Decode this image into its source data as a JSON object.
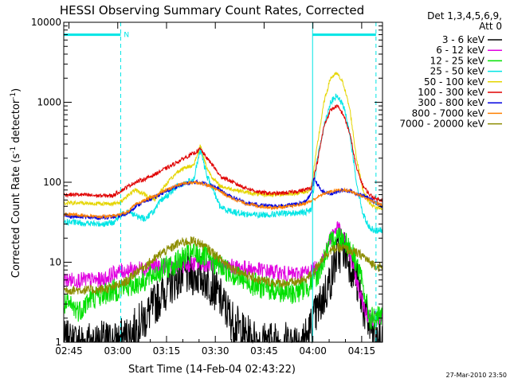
{
  "chart_data": {
    "type": "line",
    "title": "HESSI Observing Summary Count Rates, Corrected",
    "xlabel": "Start Time (14-Feb-04 02:43:22)",
    "ylabel_main": "Corrected Count Rate (s",
    "ylabel_sup1": "-1",
    "ylabel_mid": " detector",
    "ylabel_sup2": "-1",
    "ylabel_end": ")",
    "x_unit": "minutes after 02:43:22",
    "xlim": [
      0,
      98
    ],
    "ylim": [
      1,
      10000
    ],
    "log_y": true,
    "x_ticks": [
      {
        "label": "02:45",
        "x": 1.6
      },
      {
        "label": "03:00",
        "x": 16.6
      },
      {
        "label": "03:15",
        "x": 31.6
      },
      {
        "label": "03:30",
        "x": 46.6
      },
      {
        "label": "03:45",
        "x": 61.6
      },
      {
        "label": "04:00",
        "x": 76.6
      },
      {
        "label": "04:15",
        "x": 91.6
      }
    ],
    "y_ticks": [
      {
        "label": "1",
        "y": 1
      },
      {
        "label": "10",
        "y": 10
      },
      {
        "label": "100",
        "y": 100
      },
      {
        "label": "1000",
        "y": 1000
      },
      {
        "label": "10000",
        "y": 10000
      }
    ],
    "legend_header": [
      "Det 1,3,4,5,6,9,",
      "Att 0"
    ],
    "legend_position": "right",
    "attenuator_flag": {
      "label": "N",
      "segments": [
        [
          0,
          17.5
        ],
        [
          76.5,
          96
        ]
      ],
      "y": 7000,
      "color": "#00e5e5"
    },
    "event_lines": [
      {
        "x": 17.5,
        "style": "dashed"
      },
      {
        "x": 76.5,
        "style": "solid"
      },
      {
        "x": 96,
        "style": "dashed"
      }
    ],
    "series": [
      {
        "name": "3 - 6 keV",
        "color": "#000000",
        "noise": 0.55,
        "x": [
          0,
          10,
          16,
          20,
          25,
          28,
          32,
          35,
          37,
          40,
          43,
          46,
          49,
          52,
          56,
          60,
          65,
          70,
          75,
          77,
          79,
          82,
          84,
          86,
          88,
          90,
          93,
          96,
          98
        ],
        "y": [
          1,
          1,
          1,
          1.2,
          2,
          3,
          5,
          6.5,
          7,
          7,
          6.5,
          5,
          3,
          1.8,
          1.2,
          1,
          1,
          1,
          1.2,
          2,
          3,
          6,
          12,
          15,
          10,
          6,
          2,
          1,
          1
        ]
      },
      {
        "name": "6 - 12 keV",
        "color": "#e000e0",
        "noise": 0.2,
        "x": [
          0,
          12,
          16,
          20,
          25,
          30,
          35,
          40,
          45,
          50,
          55,
          60,
          65,
          70,
          75,
          78,
          80,
          82,
          84,
          86,
          88,
          90,
          92,
          94,
          96,
          98
        ],
        "y": [
          6,
          6,
          7.5,
          8,
          8.5,
          9,
          9,
          9.5,
          9.5,
          9,
          8.5,
          8,
          7.5,
          7,
          7.5,
          8.5,
          12,
          20,
          28,
          20,
          12,
          6,
          3,
          2,
          2,
          2
        ]
      },
      {
        "name": "12 - 25 keV",
        "color": "#00e000",
        "noise": 0.3,
        "x": [
          0,
          5,
          8,
          12,
          16,
          20,
          25,
          30,
          35,
          38,
          40,
          43,
          46,
          50,
          55,
          60,
          65,
          70,
          75,
          78,
          80,
          82,
          84,
          86,
          88,
          90,
          92,
          94,
          96,
          98
        ],
        "y": [
          3,
          2.5,
          3.5,
          4,
          4.5,
          5,
          6,
          8,
          10,
          12,
          13,
          12,
          10,
          8,
          6,
          5,
          4.5,
          4,
          5,
          7,
          11,
          17,
          22,
          20,
          15,
          10,
          5,
          2,
          2,
          2
        ]
      },
      {
        "name": "25 - 50 keV",
        "color": "#00e5e5",
        "noise": 0.08,
        "x": [
          0,
          5,
          10,
          15,
          18,
          20,
          22,
          25,
          28,
          30,
          33,
          35,
          38,
          40,
          42,
          44,
          46,
          48,
          50,
          53,
          56,
          60,
          65,
          70,
          74,
          76,
          78,
          80,
          82,
          84,
          86,
          88,
          90,
          92,
          94,
          96,
          98
        ],
        "y": [
          32,
          31,
          30,
          31,
          40,
          45,
          38,
          35,
          45,
          60,
          75,
          90,
          100,
          110,
          260,
          120,
          80,
          50,
          45,
          42,
          40,
          39,
          40,
          41,
          42,
          45,
          200,
          500,
          1000,
          1200,
          900,
          400,
          100,
          40,
          27,
          25,
          25
        ]
      },
      {
        "name": "50 - 100 keV",
        "color": "#e5d500",
        "noise": 0.05,
        "x": [
          0,
          5,
          10,
          15,
          17,
          20,
          22,
          25,
          28,
          30,
          33,
          35,
          37,
          40,
          42,
          44,
          46,
          48,
          50,
          53,
          56,
          60,
          65,
          70,
          74,
          76,
          78,
          80,
          82,
          84,
          86,
          88,
          90,
          92,
          94,
          96,
          98
        ],
        "y": [
          55,
          55,
          54,
          54,
          55,
          70,
          80,
          70,
          60,
          80,
          110,
          135,
          150,
          165,
          290,
          150,
          110,
          90,
          85,
          80,
          75,
          70,
          70,
          72,
          75,
          80,
          300,
          1000,
          2000,
          2300,
          1700,
          800,
          200,
          80,
          55,
          48,
          47
        ]
      },
      {
        "name": "100 - 300 keV",
        "color": "#e00000",
        "noise": 0.05,
        "x": [
          0,
          5,
          10,
          15,
          18,
          20,
          22,
          25,
          28,
          30,
          33,
          35,
          37,
          40,
          42,
          44,
          46,
          48,
          50,
          53,
          56,
          60,
          65,
          70,
          74,
          76,
          78,
          80,
          82,
          84,
          86,
          88,
          90,
          92,
          94,
          96,
          98
        ],
        "y": [
          70,
          70,
          68,
          68,
          80,
          90,
          100,
          110,
          125,
          140,
          160,
          180,
          200,
          230,
          260,
          200,
          160,
          120,
          110,
          95,
          85,
          75,
          72,
          75,
          80,
          85,
          180,
          500,
          800,
          900,
          700,
          400,
          150,
          90,
          70,
          62,
          60
        ]
      },
      {
        "name": "300 - 800 keV",
        "color": "#0000e0",
        "noise": 0.05,
        "x": [
          0,
          5,
          10,
          15,
          18,
          20,
          22,
          25,
          28,
          30,
          33,
          35,
          37,
          40,
          42,
          44,
          46,
          48,
          50,
          53,
          56,
          60,
          65,
          70,
          74,
          76,
          77,
          78,
          79,
          80,
          82,
          84,
          86,
          88,
          90,
          92,
          94,
          96,
          98
        ],
        "y": [
          38,
          37,
          36,
          37,
          38,
          42,
          50,
          58,
          65,
          72,
          82,
          90,
          95,
          100,
          100,
          95,
          90,
          80,
          70,
          62,
          55,
          52,
          50,
          52,
          56,
          70,
          110,
          95,
          80,
          75,
          72,
          76,
          80,
          78,
          72,
          68,
          62,
          55,
          50
        ]
      },
      {
        "name": "800 - 7000 keV",
        "color": "#ff7f00",
        "noise": 0.04,
        "x": [
          0,
          5,
          10,
          15,
          18,
          20,
          22,
          25,
          28,
          30,
          33,
          35,
          37,
          40,
          42,
          44,
          46,
          48,
          50,
          53,
          56,
          60,
          65,
          70,
          74,
          76,
          78,
          80,
          82,
          84,
          86,
          88,
          90,
          92,
          94,
          96,
          98
        ],
        "y": [
          40,
          39,
          37,
          38,
          40,
          44,
          52,
          60,
          67,
          75,
          85,
          92,
          97,
          100,
          98,
          92,
          86,
          78,
          68,
          60,
          54,
          50,
          48,
          50,
          54,
          58,
          65,
          72,
          76,
          80,
          80,
          78,
          72,
          66,
          60,
          55,
          52
        ]
      },
      {
        "name": "7000 - 20000 keV",
        "color": "#8c8c00",
        "noise": 0.12,
        "x": [
          0,
          5,
          10,
          15,
          18,
          20,
          22,
          25,
          28,
          30,
          33,
          35,
          37,
          40,
          42,
          44,
          46,
          48,
          50,
          53,
          56,
          60,
          65,
          70,
          74,
          76,
          78,
          80,
          82,
          84,
          86,
          88,
          90,
          92,
          94,
          96,
          98
        ],
        "y": [
          4.5,
          4.5,
          4.5,
          4.8,
          5.5,
          6,
          7.5,
          9,
          11,
          13,
          15,
          17,
          18,
          18.5,
          17,
          15,
          13,
          11,
          9.5,
          8,
          7,
          6,
          5.5,
          5.5,
          6,
          7,
          9,
          12,
          14,
          15,
          15,
          14,
          13,
          12,
          10,
          9,
          8.5
        ]
      }
    ]
  },
  "footer": {
    "date_stamp": "27-Mar-2010 23:50"
  }
}
